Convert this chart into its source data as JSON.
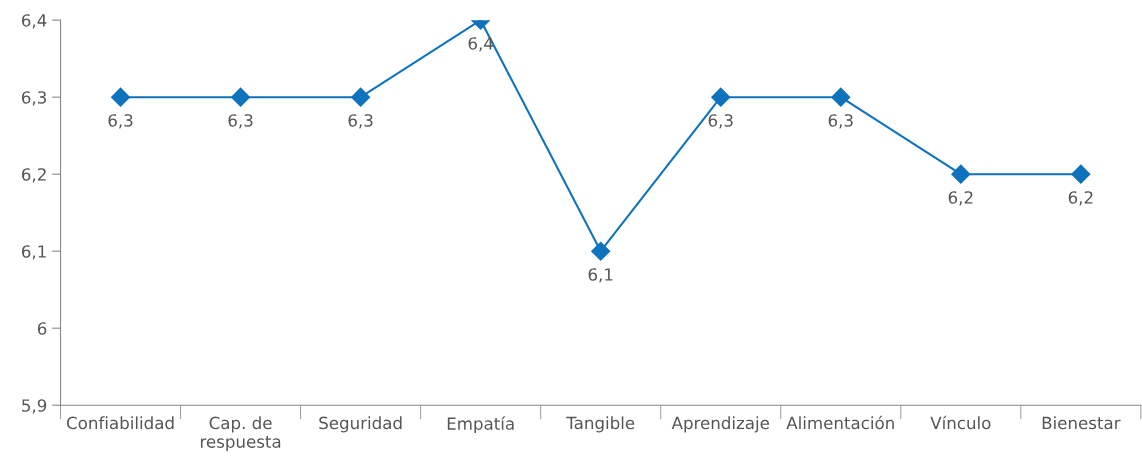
{
  "chart_data": {
    "type": "line",
    "categories": [
      "Confiabilidad",
      "Cap. de\nrespuesta",
      "Seguridad",
      "Empatía",
      "Tangible",
      "Aprendizaje",
      "Alimentación",
      "Vínculo",
      "Bienestar"
    ],
    "series": [
      {
        "color": "#0f72bd",
        "values": [
          6.3,
          6.3,
          6.3,
          6.4,
          6.1,
          6.3,
          6.3,
          6.2,
          6.2
        ],
        "value_labels": [
          "6,3",
          "6,3",
          "6,3",
          "6,4",
          "6,1",
          "6,3",
          "6,3",
          "6,2",
          "6,2"
        ]
      }
    ],
    "ylim": [
      5.9,
      6.4
    ],
    "yticks": [
      {
        "value": 5.9,
        "label": "5,9"
      },
      6,
      {
        "value": 6.1,
        "label": "6,1"
      },
      {
        "value": 6.2,
        "label": "6,2"
      },
      {
        "value": 6.3,
        "label": "6,3"
      },
      {
        "value": 6.4,
        "label": "6,4"
      }
    ],
    "marker": "diamond",
    "line_style": "solid",
    "grid": false,
    "legend": false
  }
}
